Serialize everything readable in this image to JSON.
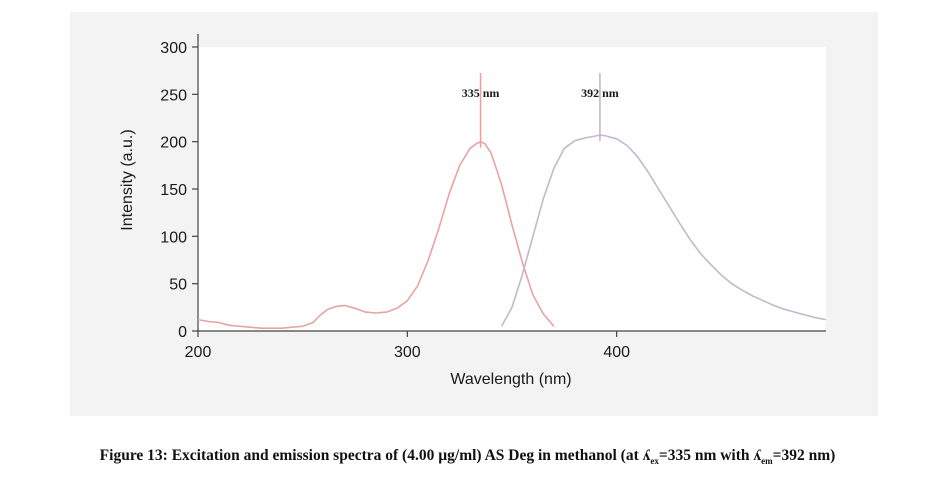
{
  "chart_data": {
    "type": "line",
    "xlabel": "Wavelength (nm)",
    "ylabel": "Intensity (a.u.)",
    "xlim": [
      200,
      500
    ],
    "ylim": [
      0,
      300
    ],
    "x_ticks": [
      "200",
      "300",
      "400"
    ],
    "y_ticks": [
      "0",
      "50",
      "100",
      "150",
      "200",
      "250",
      "300"
    ],
    "grid": false,
    "legend": "none",
    "series": [
      {
        "color": "#e8a3a3",
        "x": [
          200,
          205,
          210,
          215,
          220,
          225,
          230,
          235,
          240,
          245,
          250,
          255,
          258,
          262,
          266,
          270,
          275,
          280,
          285,
          290,
          295,
          300,
          305,
          310,
          315,
          320,
          325,
          330,
          333,
          335,
          337,
          340,
          345,
          350,
          355,
          360,
          365,
          370
        ],
        "y": [
          12,
          10,
          9,
          6,
          5,
          4,
          3,
          3,
          3,
          4,
          5,
          9,
          16,
          23,
          26,
          27,
          24,
          20,
          19,
          20,
          24,
          32,
          48,
          75,
          108,
          145,
          175,
          193,
          198,
          200,
          198,
          188,
          155,
          112,
          72,
          38,
          18,
          5
        ]
      },
      {
        "color": "#c7b6cd",
        "x": [
          345,
          350,
          355,
          360,
          365,
          370,
          375,
          380,
          385,
          390,
          392,
          395,
          400,
          405,
          410,
          415,
          420,
          425,
          430,
          435,
          440,
          445,
          450,
          455,
          460,
          465,
          470,
          475,
          480,
          485,
          490,
          495,
          500
        ],
        "y": [
          5,
          25,
          60,
          100,
          140,
          172,
          193,
          201,
          204,
          206,
          207,
          206,
          203,
          196,
          184,
          168,
          150,
          132,
          114,
          97,
          82,
          70,
          59,
          50,
          43,
          37,
          32,
          27,
          23,
          20,
          17,
          14,
          12
        ]
      }
    ],
    "annotations": [
      {
        "text": "335 nm",
        "x": 335,
        "y": 200
      },
      {
        "text": "392 nm",
        "x": 392,
        "y": 207
      }
    ]
  },
  "caption": {
    "lead": "Figure 13: Excitation and emission spectra of (4.00 µg/ml) AS Deg in methanol (at ",
    "lambda": "ʎ",
    "sub_ex": "ex",
    "mid": "=335 nm with ",
    "sub_em": "em",
    "tail": "=392 nm)"
  }
}
